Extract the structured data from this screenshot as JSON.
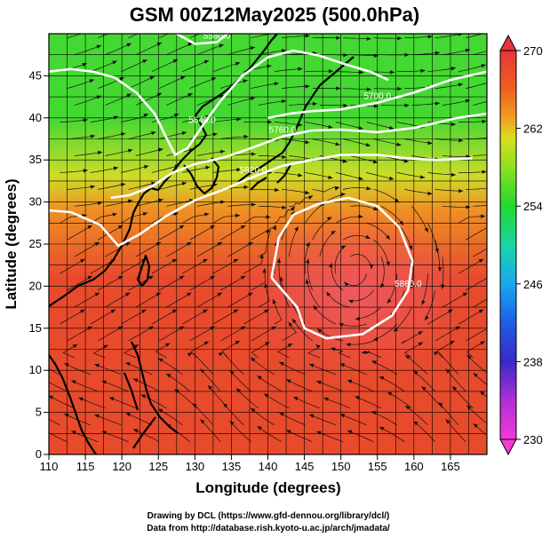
{
  "chart_data": {
    "type": "heatmap",
    "title": "GSM 00Z12May2025 (500.0hPa)",
    "xlabel": "Longitude (degrees)",
    "ylabel": "Latitude (degrees)",
    "xlim": [
      110,
      170
    ],
    "ylim": [
      0,
      50
    ],
    "xticks": [
      110,
      115,
      120,
      125,
      130,
      135,
      140,
      145,
      150,
      155,
      160,
      165
    ],
    "yticks": [
      0,
      5,
      10,
      15,
      20,
      25,
      30,
      35,
      40,
      45
    ],
    "colorbar": {
      "min": 230,
      "max": 270,
      "ticks": [
        230,
        238,
        246,
        254,
        262,
        270
      ],
      "stops": [
        {
          "value": 230,
          "color": "#f23ad6"
        },
        {
          "value": 234,
          "color": "#b030d6"
        },
        {
          "value": 238,
          "color": "#3a28c8"
        },
        {
          "value": 242,
          "color": "#1e5ee6"
        },
        {
          "value": 246,
          "color": "#18a8ee"
        },
        {
          "value": 250,
          "color": "#18d6a6"
        },
        {
          "value": 254,
          "color": "#22d830"
        },
        {
          "value": 258,
          "color": "#8ee01e"
        },
        {
          "value": 261,
          "color": "#d8e020"
        },
        {
          "value": 263,
          "color": "#f0a020"
        },
        {
          "value": 266,
          "color": "#f06020"
        },
        {
          "value": 270,
          "color": "#e8343a"
        }
      ]
    },
    "field_colors": {
      "north_green": "#44d832",
      "mid_yellow": "#cfdc28",
      "orange": "#ef8f24",
      "red": "#e84a2c",
      "high_core": "#ef5a62"
    },
    "contours": [
      {
        "label": "5880.0",
        "points": [
          [
            140.5,
            21
          ],
          [
            141.5,
            25.8
          ],
          [
            143.5,
            28.5
          ],
          [
            147,
            29.8
          ],
          [
            151,
            30.5
          ],
          [
            155,
            29.5
          ],
          [
            158,
            27
          ],
          [
            159.8,
            23
          ],
          [
            159.2,
            19.5
          ],
          [
            157,
            16.5
          ],
          [
            153,
            14.3
          ],
          [
            148,
            13.8
          ],
          [
            145,
            15
          ],
          [
            144,
            17.5
          ],
          [
            142,
            19.5
          ],
          [
            140.5,
            21
          ]
        ]
      },
      {
        "label": "5820.0",
        "points": [
          [
            110,
            29
          ],
          [
            113,
            28.8
          ],
          [
            117,
            27.3
          ],
          [
            119.5,
            24.8
          ],
          [
            122.5,
            26.2
          ],
          [
            126,
            28.3
          ],
          [
            130,
            30.2
          ],
          [
            134,
            31.5
          ],
          [
            138,
            33
          ],
          [
            142,
            34.3
          ],
          [
            146,
            35
          ],
          [
            150,
            35.6
          ],
          [
            155,
            35.6
          ],
          [
            159,
            35.2
          ],
          [
            163,
            35
          ],
          [
            168,
            35.2
          ]
        ]
      },
      {
        "label": "5760.0",
        "points": [
          [
            118.5,
            30.5
          ],
          [
            121,
            30.8
          ],
          [
            124,
            31.8
          ],
          [
            127,
            33.5
          ],
          [
            130,
            34.5
          ],
          [
            134,
            35.3
          ],
          [
            138,
            36.5
          ],
          [
            142,
            37.8
          ],
          [
            146,
            38.5
          ],
          [
            150,
            38.6
          ],
          [
            155,
            38.3
          ],
          [
            160,
            38.8
          ],
          [
            166,
            40
          ],
          [
            170,
            40.5
          ]
        ]
      },
      {
        "label": "5700.0",
        "points": [
          [
            140,
            40
          ],
          [
            143,
            40.5
          ],
          [
            146,
            40.8
          ],
          [
            150,
            41
          ],
          [
            155,
            41.8
          ],
          [
            160,
            43
          ],
          [
            165,
            44.5
          ],
          [
            170,
            45.5
          ]
        ]
      },
      {
        "label": "5640.0",
        "points": [
          [
            110,
            45.5
          ],
          [
            113,
            45.8
          ],
          [
            116,
            45.5
          ],
          [
            119,
            44.8
          ],
          [
            122,
            43
          ],
          [
            124.5,
            40.5
          ],
          [
            126,
            37.8
          ],
          [
            127.3,
            35.6
          ],
          [
            129,
            36.4
          ],
          [
            131,
            39
          ],
          [
            133.5,
            42
          ],
          [
            136.5,
            45
          ],
          [
            140,
            47.2
          ],
          [
            143.5,
            48
          ],
          [
            147,
            47.4
          ],
          [
            150.5,
            46.4
          ],
          [
            154,
            45.5
          ],
          [
            156.5,
            44.5
          ]
        ]
      },
      {
        "label": "5580.0",
        "points": [
          [
            127.5,
            50
          ],
          [
            130,
            48.8
          ],
          [
            133,
            49
          ],
          [
            134.5,
            50
          ]
        ]
      }
    ]
  },
  "credits": {
    "drawing": "Drawing by DCL (https://www.gfd-dennou.org/library/dcl/)",
    "data": "Data from http://database.rish.kyoto-u.ac.jp/arch/jmadata/"
  }
}
